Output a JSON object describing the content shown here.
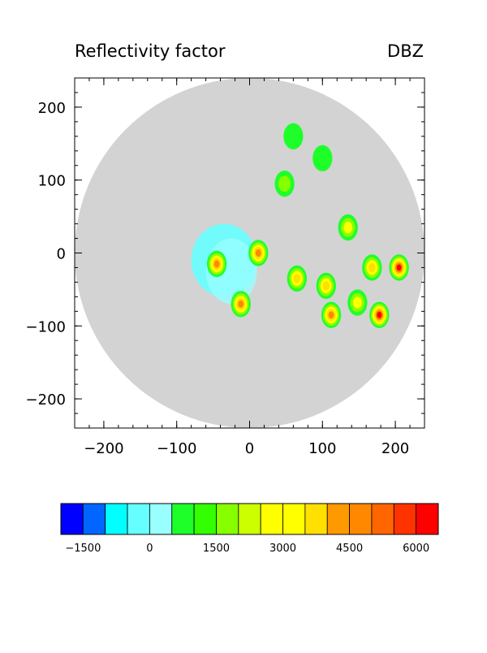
{
  "chart_data": {
    "type": "heatmap",
    "title": "Reflectivity factor",
    "variable": "DBZ",
    "xlabel": "",
    "ylabel": "",
    "xlim": [
      -240,
      240
    ],
    "ylim": [
      -240,
      240
    ],
    "grid": false,
    "x_ticks": [
      -200,
      -100,
      0,
      100,
      200
    ],
    "y_ticks": [
      200,
      100,
      0,
      -100,
      -200
    ],
    "x_tick_labels": [
      "−200",
      "−100",
      "0",
      "100",
      "200"
    ],
    "y_tick_labels": [
      "200",
      "100",
      "0",
      "−100",
      "−200"
    ],
    "range_ring_radius": 240,
    "range_ring_color": "#d3d3d3",
    "colorbar": {
      "orientation": "horizontal",
      "placement": "bottom",
      "colors": [
        "#0000ff",
        "#0066ff",
        "#00ffff",
        "#66ffff",
        "#99ffff",
        "#1eff2a",
        "#33ff00",
        "#88ff00",
        "#ccff00",
        "#ffff00",
        "#ffff00",
        "#ffe000",
        "#ff9900",
        "#ff8800",
        "#ff6600",
        "#ff3300",
        "#ff0000"
      ],
      "labels": [
        "−1500",
        "0",
        "1500",
        "3000",
        "4500",
        "6000"
      ],
      "label_values": [
        -1500,
        0,
        1500,
        3000,
        4500,
        6000
      ]
    },
    "echo_cells": [
      {
        "x": -45,
        "y": -15,
        "peak": 4
      },
      {
        "x": -12,
        "y": -70,
        "peak": 4
      },
      {
        "x": 12,
        "y": 0,
        "peak": 4
      },
      {
        "x": 65,
        "y": -35,
        "peak": 3
      },
      {
        "x": 105,
        "y": -45,
        "peak": 3
      },
      {
        "x": 112,
        "y": -85,
        "peak": 4
      },
      {
        "x": 148,
        "y": -68,
        "peak": 2
      },
      {
        "x": 178,
        "y": -85,
        "peak": 5
      },
      {
        "x": 205,
        "y": -20,
        "peak": 5
      },
      {
        "x": 168,
        "y": -20,
        "peak": 3
      },
      {
        "x": 135,
        "y": 35,
        "peak": 2
      },
      {
        "x": 48,
        "y": 95,
        "peak": 1
      },
      {
        "x": 100,
        "y": 130,
        "peak": 0
      },
      {
        "x": 60,
        "y": 160,
        "peak": 0
      }
    ]
  }
}
